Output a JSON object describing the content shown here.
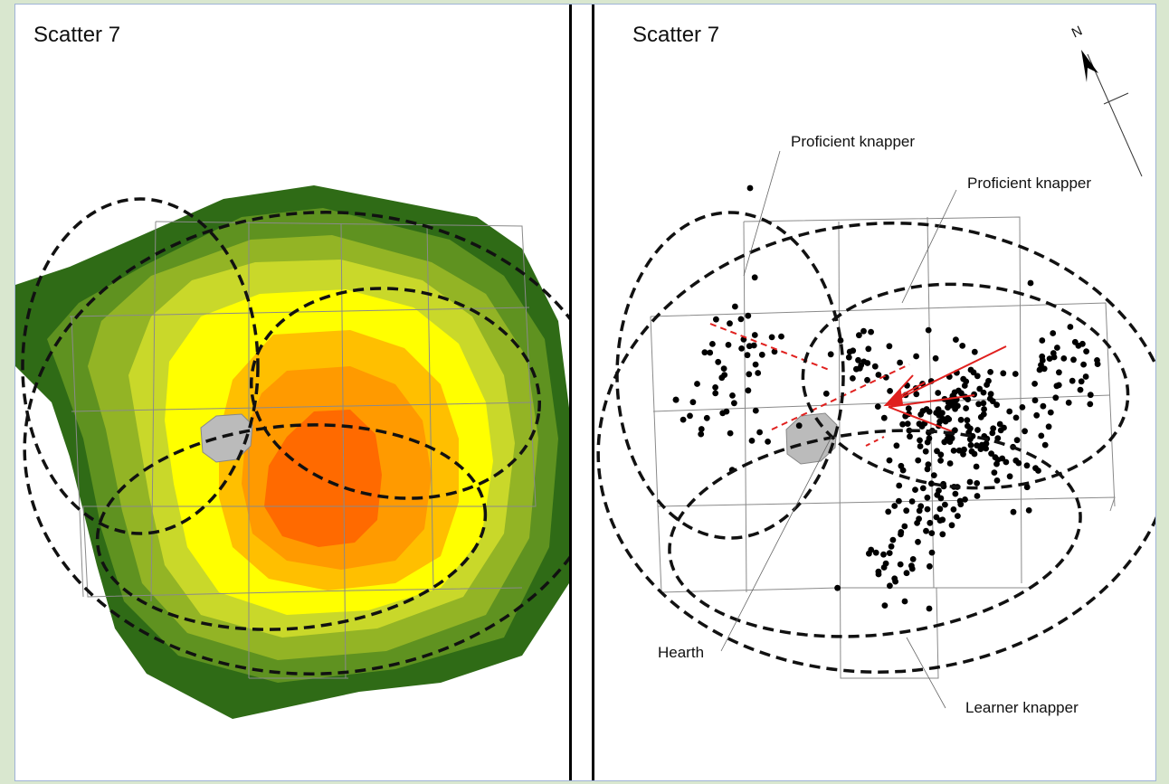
{
  "panels": {
    "left": {
      "title": "Scatter 7"
    },
    "right": {
      "title": "Scatter 7"
    }
  },
  "labels": {
    "proficient_1": "Proficient knapper",
    "proficient_2": "Proficient knapper",
    "hearth": "Hearth",
    "learner": "Learner knapper",
    "north": "N"
  },
  "colors": {
    "density_levels": [
      "#2f6b16",
      "#5f9220",
      "#93b425",
      "#c9d82a",
      "#ffff00",
      "#ffbf00",
      "#ff9a00",
      "#ff6a00"
    ],
    "hearth": "#bbbbbb",
    "refit_lines": "#e0201e",
    "artefacts": "#000000",
    "frame_border": "#9fb3d6",
    "page_background": "#d9e7cf"
  }
}
